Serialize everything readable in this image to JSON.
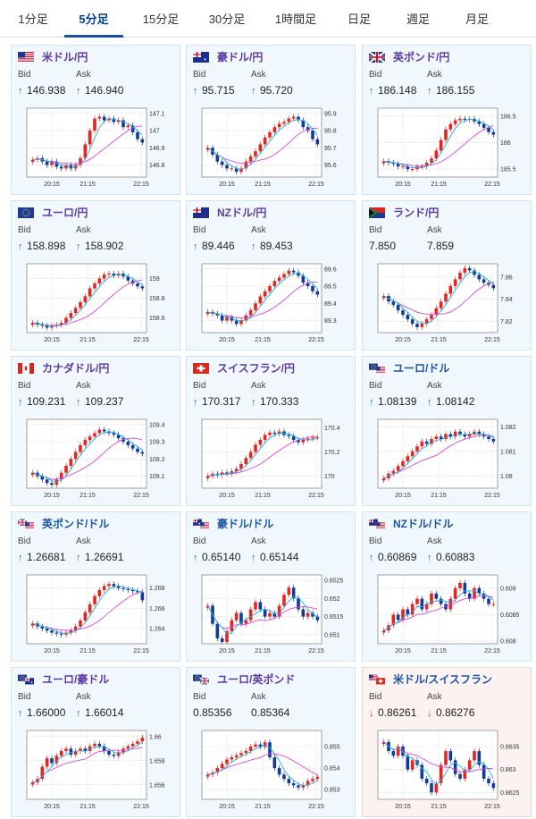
{
  "tabs": [
    {
      "label": "1分足",
      "active": false
    },
    {
      "label": "5分足",
      "active": true
    },
    {
      "label": "15分足",
      "active": false
    },
    {
      "label": "30分足",
      "active": false
    },
    {
      "label": "1時間足",
      "active": false
    },
    {
      "label": "日足",
      "active": false
    },
    {
      "label": "週足",
      "active": false
    },
    {
      "label": "月足",
      "active": false
    }
  ],
  "labels": {
    "bid": "Bid",
    "ask": "Ask"
  },
  "colors": {
    "up_candle": "#e8241e",
    "down_candle": "#123a9b",
    "ma_short": "#1fb0e0",
    "ma_long": "#d946e0",
    "up_arrow": "#1f6fb5",
    "down_arrow": "#d9382b"
  },
  "cards": [
    {
      "pair": "米ドル/円",
      "flag": "us",
      "direction": "up",
      "bid": "146.938",
      "ask": "146.940",
      "chart_data": {
        "type": "candlestick",
        "x_ticks": [
          "20:15",
          "21:15",
          "22:15"
        ],
        "y_ticks": [
          "147.1",
          "147",
          "146.9",
          "146.8"
        ],
        "ylim": [
          146.73,
          147.13
        ],
        "close": [
          146.83,
          146.84,
          146.82,
          146.8,
          146.82,
          146.79,
          146.78,
          146.8,
          146.78,
          146.8,
          146.84,
          146.92,
          147.0,
          147.07,
          147.08,
          147.06,
          147.07,
          147.05,
          147.06,
          147.02,
          147.03,
          146.99,
          146.95,
          146.93
        ]
      }
    },
    {
      "pair": "豪ドル/円",
      "flag": "au",
      "direction": "up",
      "bid": "95.715",
      "ask": "95.720",
      "chart_data": {
        "type": "candlestick",
        "x_ticks": [
          "20:15",
          "21:15",
          "22:15"
        ],
        "y_ticks": [
          "95.9",
          "95.8",
          "95.7",
          "95.6"
        ],
        "ylim": [
          95.53,
          95.93
        ],
        "close": [
          95.7,
          95.66,
          95.62,
          95.6,
          95.58,
          95.58,
          95.56,
          95.58,
          95.62,
          95.65,
          95.68,
          95.72,
          95.76,
          95.79,
          95.82,
          95.84,
          95.85,
          95.87,
          95.88,
          95.86,
          95.82,
          95.8,
          95.75,
          95.72
        ]
      }
    },
    {
      "pair": "英ポンド/円",
      "flag": "gb",
      "direction": "up",
      "bid": "186.148",
      "ask": "186.155",
      "chart_data": {
        "type": "candlestick",
        "x_ticks": [
          "20:15",
          "21:15",
          "22:15"
        ],
        "y_ticks": [
          "186.5",
          "186",
          "185.5"
        ],
        "ylim": [
          185.35,
          186.65
        ],
        "close": [
          185.65,
          185.62,
          185.6,
          185.55,
          185.55,
          185.5,
          185.5,
          185.55,
          185.55,
          185.62,
          185.7,
          185.85,
          186.05,
          186.25,
          186.35,
          186.42,
          186.45,
          186.43,
          186.45,
          186.4,
          186.35,
          186.28,
          186.2,
          186.15
        ]
      }
    },
    {
      "pair": "ユーロ/円",
      "flag": "eu",
      "direction": "up",
      "bid": "158.898",
      "ask": "158.902",
      "chart_data": {
        "type": "candlestick",
        "x_ticks": [
          "20:15",
          "21:15",
          "22:15"
        ],
        "y_ticks": [
          "159",
          "158.8",
          "158.6"
        ],
        "ylim": [
          158.45,
          159.15
        ],
        "close": [
          158.55,
          158.53,
          158.52,
          158.5,
          158.52,
          158.53,
          158.55,
          158.6,
          158.65,
          158.7,
          158.76,
          158.82,
          158.9,
          158.95,
          159.0,
          159.04,
          159.05,
          159.03,
          159.05,
          159.02,
          158.98,
          158.95,
          158.92,
          158.9
        ]
      }
    },
    {
      "pair": "NZドル/円",
      "flag": "nz",
      "direction": "up",
      "bid": "89.446",
      "ask": "89.453",
      "chart_data": {
        "type": "candlestick",
        "x_ticks": [
          "20:15",
          "21:15",
          "22:15"
        ],
        "y_ticks": [
          "89.6",
          "89.5",
          "89.4",
          "89.3"
        ],
        "ylim": [
          89.23,
          89.63
        ],
        "close": [
          89.35,
          89.34,
          89.33,
          89.3,
          89.32,
          89.3,
          89.28,
          89.3,
          89.33,
          89.36,
          89.4,
          89.44,
          89.47,
          89.5,
          89.53,
          89.55,
          89.57,
          89.59,
          89.58,
          89.56,
          89.52,
          89.5,
          89.47,
          89.45
        ]
      }
    },
    {
      "pair": "ランド/円",
      "flag": "za",
      "direction": "none",
      "bid": "7.850",
      "ask": "7.859",
      "chart_data": {
        "type": "candlestick",
        "x_ticks": [
          "20:15",
          "21:15",
          "22:15"
        ],
        "y_ticks": [
          "7.86",
          "7.84",
          "7.82"
        ],
        "ylim": [
          7.81,
          7.872
        ],
        "close": [
          7.843,
          7.838,
          7.835,
          7.83,
          7.826,
          7.822,
          7.818,
          7.815,
          7.818,
          7.822,
          7.826,
          7.832,
          7.838,
          7.845,
          7.852,
          7.858,
          7.864,
          7.868,
          7.866,
          7.862,
          7.858,
          7.855,
          7.853,
          7.85
        ]
      }
    },
    {
      "pair": "カナダドル/円",
      "flag": "ca",
      "direction": "up",
      "bid": "109.231",
      "ask": "109.237",
      "chart_data": {
        "type": "candlestick",
        "x_ticks": [
          "20:15",
          "21:15",
          "22:15"
        ],
        "y_ticks": [
          "109.4",
          "109.3",
          "109.2",
          "109.1"
        ],
        "ylim": [
          109.03,
          109.43
        ],
        "close": [
          109.12,
          109.1,
          109.08,
          109.06,
          109.05,
          109.08,
          109.12,
          109.16,
          109.2,
          109.24,
          109.28,
          109.31,
          109.33,
          109.35,
          109.37,
          109.36,
          109.35,
          109.34,
          109.32,
          109.3,
          109.28,
          109.26,
          109.24,
          109.23
        ]
      }
    },
    {
      "pair": "スイスフラン/円",
      "flag": "ch",
      "direction": "up",
      "bid": "170.317",
      "ask": "170.333",
      "chart_data": {
        "type": "candlestick",
        "x_ticks": [
          "20:15",
          "21:15",
          "22:15"
        ],
        "y_ticks": [
          "170.4",
          "170.2",
          "170"
        ],
        "ylim": [
          169.9,
          170.47
        ],
        "close": [
          170.0,
          170.02,
          170.01,
          170.03,
          170.02,
          170.04,
          170.06,
          170.1,
          170.15,
          170.2,
          170.26,
          170.3,
          170.34,
          170.36,
          170.35,
          170.37,
          170.34,
          170.33,
          170.3,
          170.28,
          170.3,
          170.31,
          170.32,
          170.32
        ]
      }
    },
    {
      "pair": "ユーロ/ドル",
      "flag": "eu-us",
      "direction": "up",
      "bid": "1.08139",
      "ask": "1.08142",
      "chart_data": {
        "type": "candlestick",
        "x_ticks": [
          "20:15",
          "21:15",
          "22:15"
        ],
        "y_ticks": [
          "1.082",
          "1.081",
          "1.08"
        ],
        "ylim": [
          1.0795,
          1.0823
        ],
        "close": [
          1.0799,
          1.0801,
          1.0802,
          1.0804,
          1.0806,
          1.0808,
          1.081,
          1.0812,
          1.0814,
          1.0813,
          1.0815,
          1.0816,
          1.0815,
          1.0817,
          1.0816,
          1.0818,
          1.0817,
          1.0816,
          1.0817,
          1.0818,
          1.0817,
          1.0816,
          1.0815,
          1.0814
        ]
      }
    },
    {
      "pair": "英ポンド/ドル",
      "flag": "gb-us",
      "direction": "up",
      "bid": "1.26681",
      "ask": "1.26691",
      "chart_data": {
        "type": "candlestick",
        "x_ticks": [
          "20:15",
          "21:15",
          "22:15"
        ],
        "y_ticks": [
          "1.268",
          "1.266",
          "1.264"
        ],
        "ylim": [
          1.2625,
          1.2693
        ],
        "close": [
          1.2645,
          1.2642,
          1.264,
          1.2638,
          1.2636,
          1.2635,
          1.2634,
          1.2636,
          1.2638,
          1.2642,
          1.2648,
          1.2656,
          1.2664,
          1.2672,
          1.2678,
          1.2682,
          1.2684,
          1.2682,
          1.268,
          1.2679,
          1.2678,
          1.2677,
          1.2676,
          1.2668
        ]
      }
    },
    {
      "pair": "豪ドル/ドル",
      "flag": "au-us",
      "direction": "up",
      "bid": "0.65140",
      "ask": "0.65144",
      "chart_data": {
        "type": "candlestick",
        "x_ticks": [
          "20:15",
          "21:15",
          "22:15"
        ],
        "y_ticks": [
          "0.6525",
          "0.652",
          "0.6515",
          "0.651"
        ],
        "ylim": [
          0.65075,
          0.65265
        ],
        "close": [
          0.6518,
          0.6513,
          0.6509,
          0.6508,
          0.6511,
          0.6514,
          0.6516,
          0.6513,
          0.6514,
          0.6517,
          0.6519,
          0.6517,
          0.6515,
          0.6516,
          0.6515,
          0.6518,
          0.6521,
          0.6523,
          0.652,
          0.6517,
          0.6515,
          0.6516,
          0.6515,
          0.6514
        ]
      }
    },
    {
      "pair": "NZドル/ドル",
      "flag": "nz-us",
      "direction": "up",
      "bid": "0.60869",
      "ask": "0.60883",
      "chart_data": {
        "type": "candlestick",
        "x_ticks": [
          "20:15",
          "21:15",
          "22:15"
        ],
        "y_ticks": [
          "0.609",
          "0.6085",
          "0.608"
        ],
        "ylim": [
          0.60795,
          0.60925
        ],
        "close": [
          0.6082,
          0.6083,
          0.6085,
          0.6084,
          0.6086,
          0.6085,
          0.6087,
          0.6088,
          0.6086,
          0.6087,
          0.6089,
          0.6088,
          0.6087,
          0.6086,
          0.6088,
          0.609,
          0.6091,
          0.6089,
          0.6088,
          0.609,
          0.6089,
          0.6088,
          0.6087,
          0.6087
        ]
      }
    },
    {
      "pair": "ユーロ/豪ドル",
      "flag": "eu-au",
      "direction": "up",
      "bid": "1.66000",
      "ask": "1.66014",
      "chart_data": {
        "type": "candlestick",
        "x_ticks": [
          "20:15",
          "21:15",
          "22:15"
        ],
        "y_ticks": [
          "1.66",
          "1.658",
          "1.656"
        ],
        "ylim": [
          1.6548,
          1.6605
        ],
        "close": [
          1.6562,
          1.6565,
          1.6575,
          1.6582,
          1.6578,
          1.6584,
          1.6588,
          1.659,
          1.6585,
          1.6588,
          1.659,
          1.6588,
          1.6592,
          1.6594,
          1.6592,
          1.6588,
          1.6585,
          1.6584,
          1.6587,
          1.659,
          1.6592,
          1.6594,
          1.6596,
          1.6599
        ]
      }
    },
    {
      "pair": "ユーロ/英ポンド",
      "flag": "eu-gb",
      "direction": "none",
      "bid": "0.85356",
      "ask": "0.85364",
      "chart_data": {
        "type": "candlestick",
        "x_ticks": [
          "20:15",
          "21:15",
          "22:15"
        ],
        "y_ticks": [
          "0.855",
          "0.854",
          "0.853"
        ],
        "ylim": [
          0.85255,
          0.85575
        ],
        "close": [
          0.8537,
          0.8538,
          0.854,
          0.8542,
          0.8544,
          0.8545,
          0.8546,
          0.8547,
          0.8548,
          0.855,
          0.8551,
          0.855,
          0.8552,
          0.8545,
          0.854,
          0.8537,
          0.8535,
          0.8533,
          0.8532,
          0.8531,
          0.8532,
          0.8534,
          0.8535,
          0.8536
        ]
      }
    },
    {
      "pair": "米ドル/スイスフラン",
      "flag": "us-ch",
      "direction": "down",
      "bid": "0.86261",
      "ask": "0.86276",
      "chart_data": {
        "type": "candlestick",
        "x_ticks": [
          "20:15",
          "21:15",
          "22:15"
        ],
        "y_ticks": [
          "0.8635",
          "0.863",
          "0.8625"
        ],
        "ylim": [
          0.86235,
          0.86385
        ],
        "close": [
          0.8636,
          0.8634,
          0.8633,
          0.8635,
          0.8633,
          0.863,
          0.8632,
          0.8631,
          0.8628,
          0.8627,
          0.8625,
          0.8627,
          0.8631,
          0.8634,
          0.8632,
          0.8629,
          0.8628,
          0.863,
          0.8632,
          0.8634,
          0.8631,
          0.8628,
          0.8627,
          0.8626
        ]
      }
    }
  ]
}
